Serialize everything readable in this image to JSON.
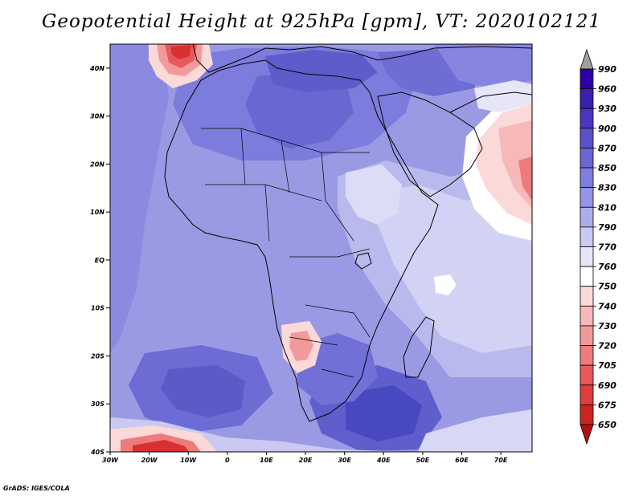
{
  "title": "Geopotential Height at 925hPa [gpm], VT: 2020102121",
  "footer": "GrADS: IGES/COLA",
  "map": {
    "lon_range": [
      -30,
      78
    ],
    "lat_range": [
      -40,
      45
    ],
    "lat_ticks": [
      {
        "value": 40,
        "label": "40N"
      },
      {
        "value": 30,
        "label": "30N"
      },
      {
        "value": 20,
        "label": "20N"
      },
      {
        "value": 10,
        "label": "10N"
      },
      {
        "value": 0,
        "label": "EQ"
      },
      {
        "value": -10,
        "label": "10S"
      },
      {
        "value": -20,
        "label": "20S"
      },
      {
        "value": -30,
        "label": "30S"
      },
      {
        "value": -40,
        "label": "40S"
      }
    ],
    "lon_ticks": [
      {
        "value": -30,
        "label": "30W"
      },
      {
        "value": -20,
        "label": "20W"
      },
      {
        "value": -10,
        "label": "10W"
      },
      {
        "value": 0,
        "label": "0"
      },
      {
        "value": 10,
        "label": "10E"
      },
      {
        "value": 20,
        "label": "20E"
      },
      {
        "value": 30,
        "label": "30E"
      },
      {
        "value": 40,
        "label": "40E"
      },
      {
        "value": 50,
        "label": "50E"
      },
      {
        "value": 60,
        "label": "60E"
      },
      {
        "value": 70,
        "label": "70E"
      }
    ]
  },
  "colorbar": {
    "levels": [
      "990",
      "960",
      "930",
      "900",
      "870",
      "850",
      "830",
      "810",
      "790",
      "770",
      "760",
      "750",
      "740",
      "730",
      "720",
      "705",
      "690",
      "675",
      "650"
    ],
    "colors": [
      "#a0a0a0",
      "#2b00a8",
      "#3a1fb0",
      "#4a35c0",
      "#5a50cc",
      "#6a66d6",
      "#7d7edf",
      "#9595e6",
      "#adade9",
      "#c9c9f2",
      "#e6e6f8",
      "#ffffff",
      "#fbd9d9",
      "#f6b8b8",
      "#f29a9a",
      "#ee7b7b",
      "#e85a5a",
      "#df3d3d",
      "#cc2323",
      "#b30f0f"
    ]
  },
  "chart_data": {
    "type": "heatmap",
    "title": "Geopotential Height at 925hPa [gpm], VT: 2020102121",
    "variable": "Geopotential Height",
    "level": "925hPa",
    "units": "gpm",
    "valid_time": "2020102121",
    "x": "longitude",
    "y": "latitude",
    "xlim": [
      -30,
      78
    ],
    "ylim": [
      -40,
      45
    ],
    "contour_levels": [
      650,
      675,
      690,
      705,
      720,
      730,
      740,
      750,
      760,
      770,
      790,
      810,
      830,
      850,
      870,
      900,
      930,
      960,
      990
    ],
    "features": [
      {
        "region": "Iberia / NE Atlantic",
        "value_range": [
          690,
          760
        ]
      },
      {
        "region": "Arabian Sea",
        "value_range": [
          740,
          770
        ]
      },
      {
        "region": "Southern Angola / Namibia",
        "value_range": [
          740,
          770
        ]
      },
      {
        "region": "Southern Ocean near 40S 20W",
        "value_range": [
          675,
          760
        ]
      },
      {
        "region": "Libya / Mediterranean",
        "value_range": [
          850,
          870
        ]
      },
      {
        "region": "SW Indian Ocean 30S 40E",
        "value_range": [
          850,
          870
        ]
      },
      {
        "region": "South Atlantic 28S 20W",
        "value_range": [
          830,
          850
        ]
      }
    ]
  }
}
